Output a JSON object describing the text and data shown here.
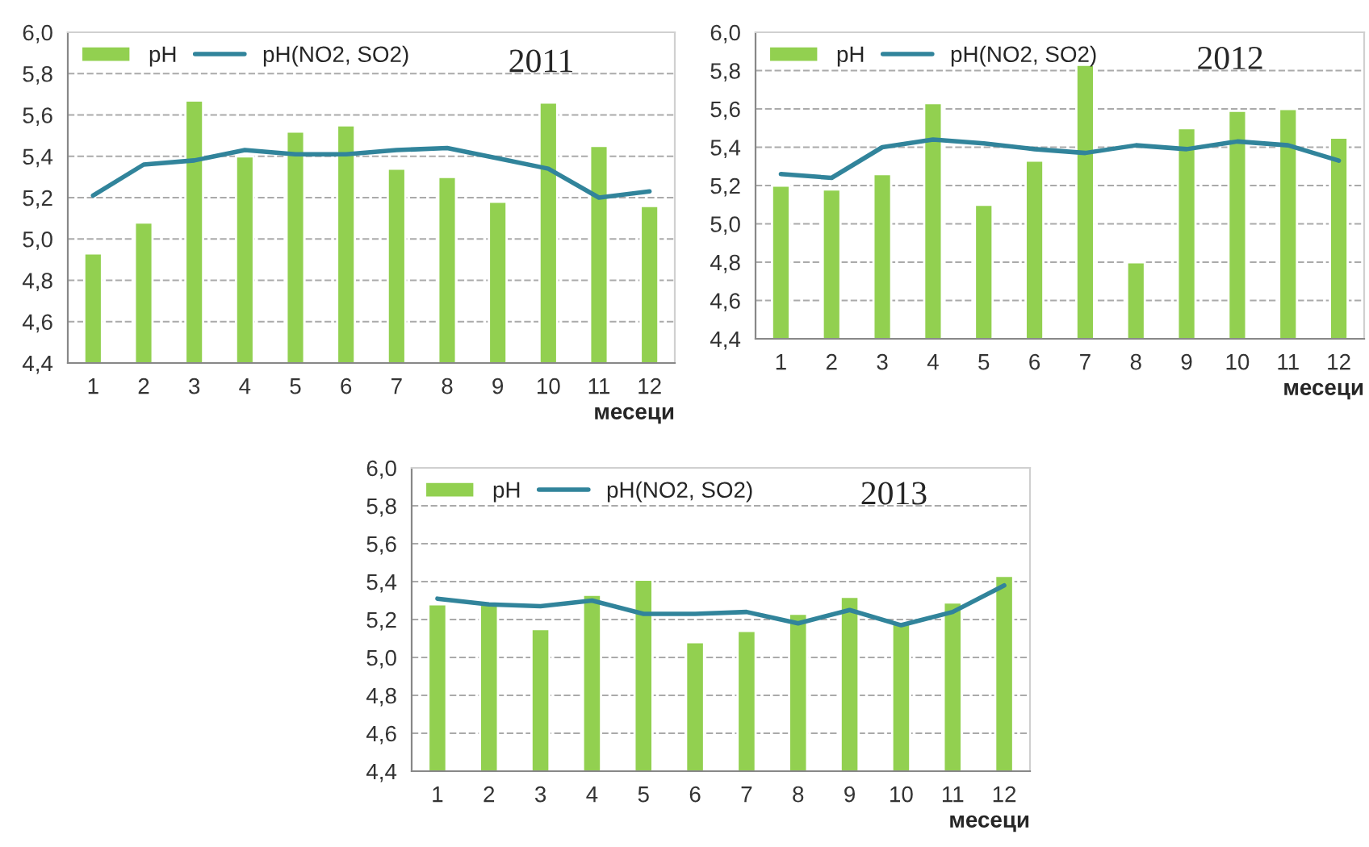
{
  "chart_data": [
    {
      "type": "bar",
      "categories": [
        "1",
        "2",
        "3",
        "4",
        "5",
        "6",
        "7",
        "8",
        "9",
        "10",
        "11",
        "12"
      ],
      "xlabel": "месеци",
      "annotations": [
        "2011"
      ],
      "ylim": [
        4.4,
        6.0
      ],
      "yticks": [
        {
          "value": 4.4,
          "label": "4,4"
        },
        {
          "value": 4.6,
          "label": "4,6"
        },
        {
          "value": 4.8,
          "label": "4,8"
        },
        {
          "value": 5.0,
          "label": "5,0"
        },
        {
          "value": 5.2,
          "label": "5,2"
        },
        {
          "value": 5.4,
          "label": "5,4"
        },
        {
          "value": 5.6,
          "label": "5,6"
        },
        {
          "value": 5.8,
          "label": "5,8"
        },
        {
          "value": 6.0,
          "label": "6,0"
        }
      ],
      "grid": "y",
      "legend": "top left",
      "series": [
        {
          "name": "pH",
          "color": "#92d050",
          "values": [
            4.93,
            5.08,
            5.67,
            5.4,
            5.52,
            5.55,
            5.34,
            5.3,
            5.18,
            5.66,
            5.45,
            5.16
          ]
        },
        {
          "name": "pH(NO2, SO2)",
          "type": "line",
          "color": "#31849b",
          "values": [
            5.21,
            5.36,
            5.38,
            5.43,
            5.41,
            5.41,
            5.43,
            5.44,
            5.39,
            5.34,
            5.2,
            5.23
          ]
        }
      ]
    },
    {
      "type": "bar",
      "categories": [
        "1",
        "2",
        "3",
        "4",
        "5",
        "6",
        "7",
        "8",
        "9",
        "10",
        "11",
        "12"
      ],
      "xlabel": "месеци",
      "annotations": [
        "2012"
      ],
      "ylim": [
        4.4,
        6.0
      ],
      "yticks": [
        {
          "value": 4.4,
          "label": "4,4"
        },
        {
          "value": 4.6,
          "label": "4,6"
        },
        {
          "value": 4.8,
          "label": "4,8"
        },
        {
          "value": 5.0,
          "label": "5,0"
        },
        {
          "value": 5.2,
          "label": "5,2"
        },
        {
          "value": 5.4,
          "label": "5,4"
        },
        {
          "value": 5.6,
          "label": "5,6"
        },
        {
          "value": 5.8,
          "label": "5,8"
        },
        {
          "value": 6.0,
          "label": "6,0"
        }
      ],
      "grid": "y",
      "legend": "top left",
      "series": [
        {
          "name": "pH",
          "color": "#92d050",
          "values": [
            5.2,
            5.18,
            5.26,
            5.63,
            5.1,
            5.33,
            5.83,
            4.8,
            5.5,
            5.59,
            5.6,
            5.45
          ]
        },
        {
          "name": "pH(NO2, SO2)",
          "type": "line",
          "color": "#31849b",
          "values": [
            5.26,
            5.24,
            5.4,
            5.44,
            5.42,
            5.39,
            5.37,
            5.41,
            5.39,
            5.43,
            5.41,
            5.33
          ]
        }
      ]
    },
    {
      "type": "bar",
      "categories": [
        "1",
        "2",
        "3",
        "4",
        "5",
        "6",
        "7",
        "8",
        "9",
        "10",
        "11",
        "12"
      ],
      "xlabel": "месеци",
      "annotations": [
        "2013"
      ],
      "ylim": [
        4.4,
        6.0
      ],
      "yticks": [
        {
          "value": 4.4,
          "label": "4,4"
        },
        {
          "value": 4.6,
          "label": "4,6"
        },
        {
          "value": 4.8,
          "label": "4,8"
        },
        {
          "value": 5.0,
          "label": "5,0"
        },
        {
          "value": 5.2,
          "label": "5,2"
        },
        {
          "value": 5.4,
          "label": "5,4"
        },
        {
          "value": 5.6,
          "label": "5,6"
        },
        {
          "value": 5.8,
          "label": "5,8"
        },
        {
          "value": 6.0,
          "label": "6,0"
        }
      ],
      "grid": "y",
      "legend": "top left",
      "series": [
        {
          "name": "pH",
          "color": "#92d050",
          "values": [
            5.28,
            5.29,
            5.15,
            5.33,
            5.41,
            5.08,
            5.14,
            5.23,
            5.32,
            5.18,
            5.29,
            5.43
          ]
        },
        {
          "name": "pH(NO2, SO2)",
          "type": "line",
          "color": "#31849b",
          "values": [
            5.31,
            5.28,
            5.27,
            5.3,
            5.23,
            5.23,
            5.24,
            5.18,
            5.25,
            5.17,
            5.24,
            5.38
          ]
        }
      ]
    }
  ]
}
